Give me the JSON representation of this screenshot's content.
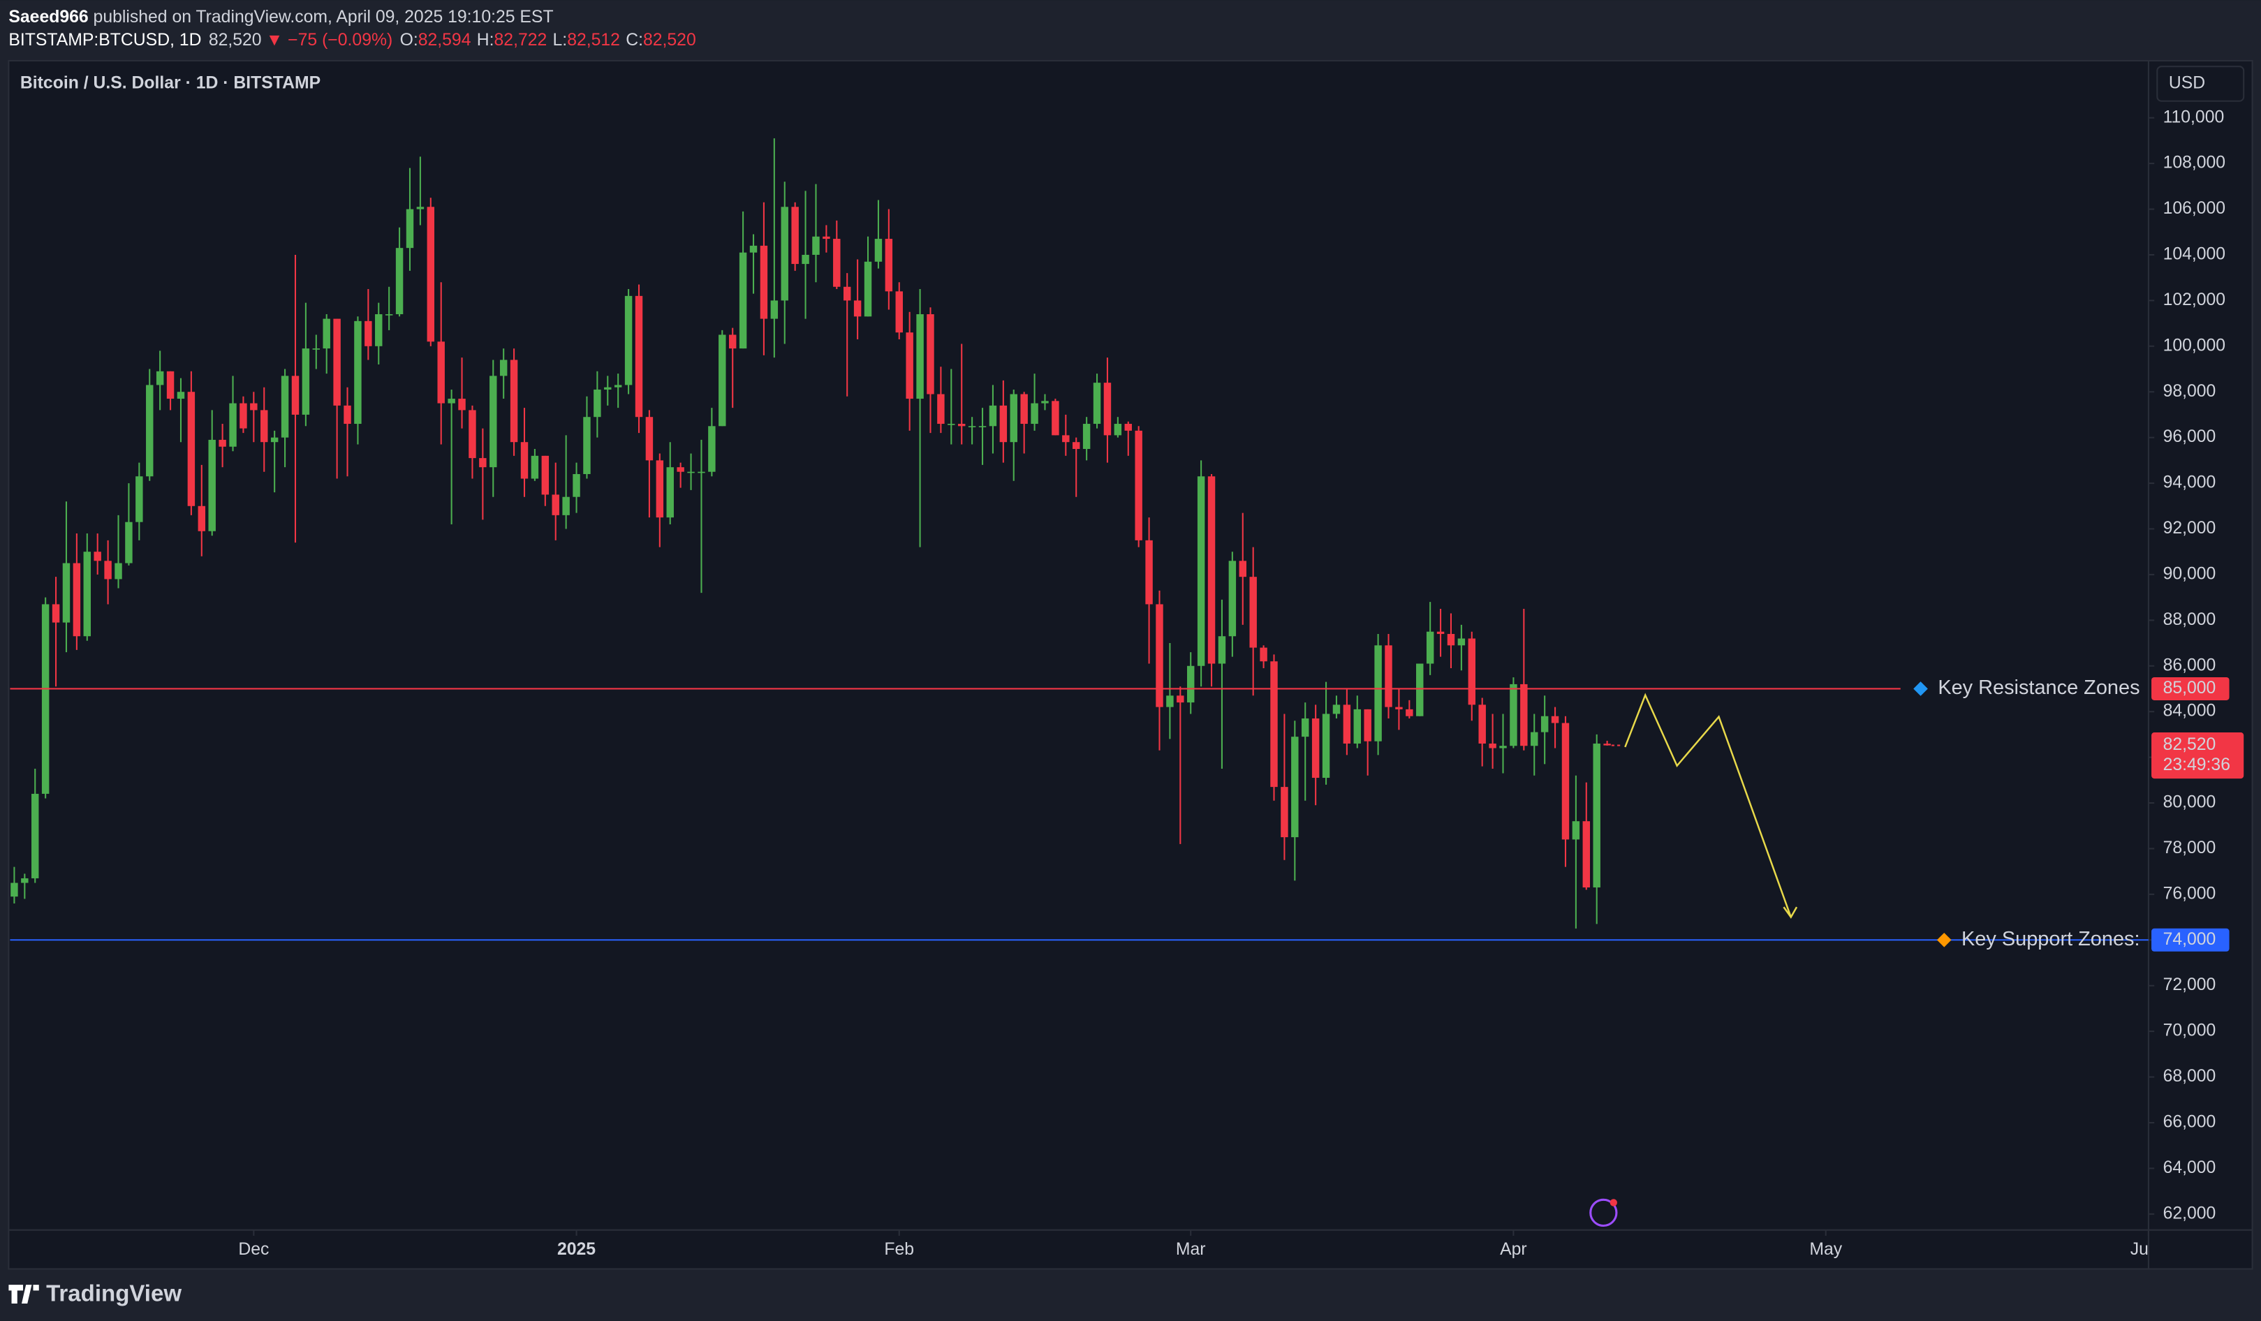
{
  "header": {
    "author": "Saeed966",
    "published": " published on TradingView.com, April 09, 2025 19:10:25 EST",
    "symbol": "BITSTAMP:BTCUSD, 1D",
    "price": "82,520",
    "change": "▼ −75 (−0.09%)",
    "o_label": "O:",
    "o_value": "82,594",
    "h_label": "H:",
    "h_value": "82,722",
    "l_label": "L:",
    "l_value": "82,512",
    "c_label": "C:",
    "c_value": "82,520"
  },
  "footer": {
    "brand": "TradingView"
  },
  "chart_data": {
    "type": "candlestick",
    "title": "Bitcoin / U.S. Dollar · 1D · BITSTAMP",
    "currency": "USD",
    "up_color": "#4caf50",
    "down_color": "#f23645",
    "grid": false,
    "open": [
      75900,
      76500,
      76700,
      80400,
      88700,
      87900,
      90500,
      87300,
      91000,
      90600,
      89800,
      90500,
      92300,
      94300,
      98300,
      98900,
      97700,
      98000,
      93000,
      91900,
      95900,
      95600,
      97500,
      97500,
      97200,
      95800,
      96000,
      98700,
      97000,
      99900,
      99900,
      101200,
      97400,
      96600,
      101100,
      100000,
      101400,
      101400,
      104300,
      106000,
      106100,
      100200,
      97500,
      97700,
      97200,
      95100,
      94700,
      98700,
      99400,
      95800,
      94200,
      95200,
      93500,
      92600,
      93400,
      94400,
      96900,
      98100,
      98200,
      98300,
      102200,
      96900,
      95000,
      92500,
      94700,
      94500,
      94500,
      94500,
      96500,
      100500,
      99900,
      104100,
      104400,
      101200,
      102000,
      106100,
      103600,
      104000,
      104800,
      104700,
      102600,
      102000,
      101300,
      103700,
      104700,
      102400,
      100600,
      97700,
      101400,
      97900,
      96600,
      96600,
      96500,
      96500,
      96500,
      97400,
      95800,
      97900,
      96600,
      97500,
      97600,
      96100,
      95800,
      95500,
      96600,
      98400,
      96100,
      96600,
      96300,
      91500,
      88700,
      84200,
      84700,
      84400,
      86000,
      94300,
      86100,
      87300,
      90600,
      89900,
      86800,
      86200,
      80700,
      78500,
      82900,
      83700,
      81100,
      83900,
      84300,
      82600,
      84100,
      82700,
      86900,
      84200,
      84100,
      83800,
      86100,
      87500,
      87400,
      86900,
      87200,
      84300,
      82600,
      82400,
      82500,
      85200,
      82500,
      83100,
      83800,
      83500,
      78400,
      79200,
      76300,
      82594
    ],
    "high": [
      77200,
      76900,
      81500,
      89000,
      89900,
      93200,
      91800,
      91800,
      91800,
      91500,
      92600,
      94000,
      94900,
      99000,
      99800,
      98900,
      98600,
      98900,
      94800,
      97200,
      96600,
      98700,
      97800,
      98000,
      98200,
      96300,
      99000,
      104000,
      101900,
      100500,
      101400,
      101200,
      98200,
      101300,
      102500,
      101900,
      102600,
      105200,
      107800,
      108300,
      106500,
      102800,
      98100,
      99500,
      97400,
      96400,
      99400,
      99900,
      99900,
      97300,
      95500,
      95200,
      94900,
      96100,
      94900,
      97800,
      98900,
      98700,
      98800,
      102500,
      102700,
      97200,
      95300,
      95800,
      94900,
      95300,
      95900,
      97300,
      100700,
      100800,
      105900,
      104900,
      106300,
      109100,
      107200,
      106300,
      106800,
      107100,
      105300,
      105500,
      103200,
      103800,
      104800,
      106400,
      106000,
      102800,
      101500,
      102500,
      101700,
      99100,
      99000,
      100100,
      96900,
      97300,
      98300,
      98500,
      98100,
      98000,
      98800,
      97900,
      97700,
      97000,
      96000,
      96900,
      98800,
      99500,
      96900,
      96700,
      96500,
      92500,
      89300,
      87000,
      85100,
      86600,
      95000,
      94400,
      88900,
      91000,
      92700,
      91200,
      86900,
      86500,
      83900,
      83600,
      84400,
      84300,
      85300,
      84700,
      85000,
      84700,
      84100,
      87400,
      87400,
      85000,
      84500,
      86100,
      88800,
      88500,
      88300,
      87800,
      87500,
      84600,
      83900,
      83900,
      85500,
      88500,
      83900,
      84700,
      84200,
      83800,
      81200,
      80900,
      83000,
      82722
    ],
    "low": [
      75600,
      75800,
      76500,
      80200,
      85100,
      86600,
      86700,
      87100,
      90000,
      88700,
      89400,
      90400,
      91500,
      94100,
      97200,
      97200,
      95800,
      92600,
      90800,
      91700,
      94700,
      95400,
      96200,
      95800,
      94500,
      93600,
      94700,
      91400,
      96500,
      99000,
      98800,
      94200,
      94300,
      95700,
      99400,
      99200,
      100700,
      101300,
      103300,
      105300,
      100000,
      95700,
      92200,
      96400,
      94200,
      92400,
      93400,
      97700,
      95200,
      93400,
      94100,
      93000,
      91500,
      92000,
      92700,
      94200,
      96000,
      97400,
      97300,
      97900,
      96200,
      92500,
      91200,
      92200,
      93800,
      93700,
      89200,
      94300,
      96500,
      97300,
      99900,
      102300,
      99600,
      99500,
      100100,
      103300,
      101200,
      102800,
      104100,
      102500,
      97800,
      100300,
      101300,
      103400,
      101600,
      100300,
      96300,
      91200,
      96200,
      96200,
      95700,
      95700,
      95700,
      94800,
      95300,
      94900,
      94100,
      95300,
      96300,
      97200,
      96100,
      95200,
      93400,
      95000,
      96400,
      94900,
      96000,
      95200,
      91200,
      86100,
      82300,
      82800,
      78200,
      83900,
      85100,
      85100,
      81500,
      86400,
      87800,
      84700,
      85900,
      80100,
      77500,
      76600,
      80100,
      79900,
      80800,
      83700,
      82100,
      82400,
      81200,
      82100,
      83700,
      83200,
      83700,
      83800,
      85600,
      86400,
      85900,
      85800,
      83600,
      81600,
      81500,
      81300,
      82400,
      82300,
      81200,
      81700,
      82400,
      77200,
      74500,
      76200,
      74700,
      82512
    ],
    "close": [
      76500,
      76700,
      80400,
      88700,
      87900,
      90500,
      87300,
      91000,
      90600,
      89800,
      90500,
      92300,
      94300,
      98300,
      98900,
      97700,
      98000,
      93000,
      91900,
      95900,
      95600,
      97500,
      96400,
      97200,
      95800,
      96000,
      98700,
      97000,
      99900,
      99900,
      101200,
      97400,
      96600,
      101100,
      100000,
      101400,
      101400,
      104300,
      106000,
      106100,
      100200,
      97500,
      97700,
      97200,
      95100,
      94700,
      98700,
      99400,
      95800,
      94200,
      95200,
      93500,
      92600,
      93400,
      94400,
      96900,
      98100,
      98200,
      98300,
      102200,
      96900,
      95000,
      92500,
      94700,
      94500,
      94500,
      94500,
      96500,
      100500,
      99900,
      104100,
      104400,
      101200,
      102000,
      106100,
      103600,
      104000,
      104800,
      104700,
      102600,
      102000,
      101300,
      103700,
      104700,
      102400,
      100600,
      97700,
      101400,
      97900,
      96600,
      96600,
      96500,
      96500,
      96500,
      97400,
      95800,
      97900,
      96600,
      97500,
      97600,
      96100,
      95800,
      95500,
      96600,
      98400,
      96100,
      96600,
      96300,
      91500,
      88700,
      84200,
      84700,
      84400,
      86000,
      94300,
      86100,
      87300,
      90600,
      89900,
      86800,
      86200,
      80700,
      78500,
      82900,
      83700,
      81100,
      83900,
      84300,
      82600,
      84100,
      82700,
      86900,
      84200,
      84100,
      83800,
      86100,
      87500,
      87400,
      86900,
      87200,
      84300,
      82600,
      82400,
      82500,
      85200,
      82500,
      83100,
      83800,
      83500,
      78400,
      79200,
      76300,
      82600,
      82520
    ],
    "xlim": [
      -0.4,
      205
    ],
    "xticks": [
      {
        "value": 23,
        "label": "Dec"
      },
      {
        "value": 54,
        "label": "2025"
      },
      {
        "value": 85,
        "label": "Feb"
      },
      {
        "value": 113,
        "label": "Mar"
      },
      {
        "value": 144,
        "label": "Apr"
      },
      {
        "value": 174,
        "label": "May"
      },
      {
        "value": 205,
        "label": "Ju"
      }
    ],
    "ylim": [
      61300,
      112500
    ],
    "yticks": [
      {
        "value": 62000,
        "label": "62,000"
      },
      {
        "value": 64000,
        "label": "64,000"
      },
      {
        "value": 66000,
        "label": "66,000"
      },
      {
        "value": 68000,
        "label": "68,000"
      },
      {
        "value": 70000,
        "label": "70,000"
      },
      {
        "value": 72000,
        "label": "72,000"
      },
      {
        "value": 74000,
        "label": "74,000"
      },
      {
        "value": 76000,
        "label": "76,000"
      },
      {
        "value": 78000,
        "label": "78,000"
      },
      {
        "value": 80000,
        "label": "80,000"
      },
      {
        "value": 82000,
        "label": "82,000"
      },
      {
        "value": 84000,
        "label": "84,000"
      },
      {
        "value": 86000,
        "label": "86,000"
      },
      {
        "value": 88000,
        "label": "88,000"
      },
      {
        "value": 90000,
        "label": "90,000"
      },
      {
        "value": 92000,
        "label": "92,000"
      },
      {
        "value": 94000,
        "label": "94,000"
      },
      {
        "value": 96000,
        "label": "96,000"
      },
      {
        "value": 98000,
        "label": "98,000"
      },
      {
        "value": 100000,
        "label": "100,000"
      },
      {
        "value": 102000,
        "label": "102,000"
      },
      {
        "value": 104000,
        "label": "104,000"
      },
      {
        "value": 106000,
        "label": "106,000"
      },
      {
        "value": 108000,
        "label": "108,000"
      },
      {
        "value": 110000,
        "label": "110,000"
      }
    ],
    "levels": [
      {
        "value": 85000,
        "label": "Key Resistance Zones",
        "price_label": "85,000",
        "color": "#f23645"
      },
      {
        "value": 74000,
        "label": "Key Support Zones:",
        "price_label": "74,000",
        "color": "#2962ff"
      }
    ],
    "last_price": {
      "value": 82520,
      "label": "82,520",
      "countdown": "23:49:36",
      "color": "#f23645"
    }
  }
}
